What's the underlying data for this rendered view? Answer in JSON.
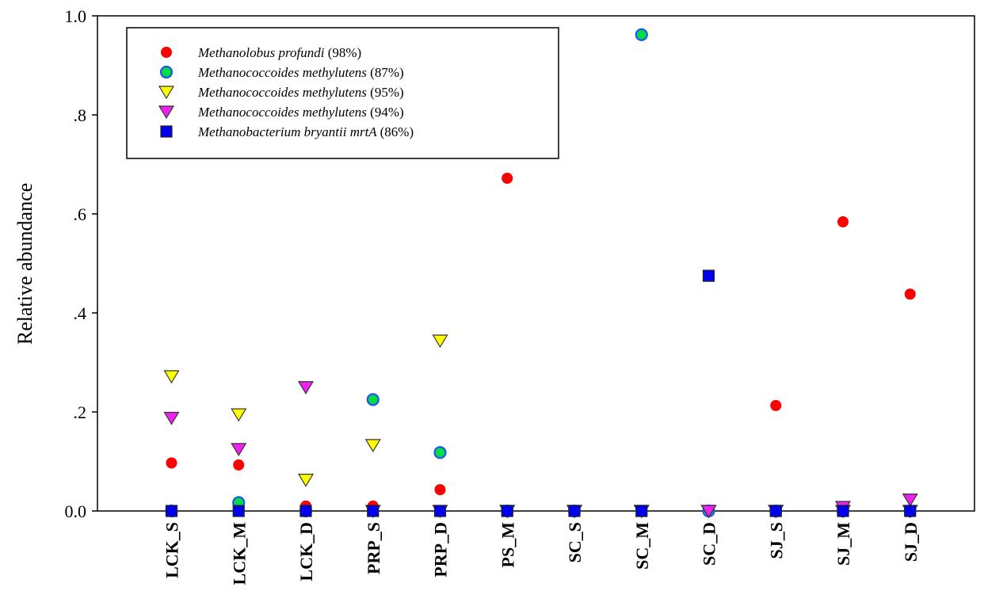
{
  "chart_data": {
    "type": "scatter",
    "ylabel": "Relative abundance",
    "xlabel": "",
    "ylim": [
      0,
      1.0
    ],
    "y_ticks": [
      "0.0",
      ".2",
      ".4",
      ".6",
      ".8",
      "1.0"
    ],
    "grid": false,
    "legend_position": "top-left",
    "categories": [
      "LCK_S",
      "LCK_M",
      "LCK_D",
      "PRP_S",
      "PRP_D",
      "PS_M",
      "SC_S",
      "SC_M",
      "SC_D",
      "SJ_S",
      "SJ_M",
      "SJ_D"
    ],
    "series": [
      {
        "name": "Methanolobus profundi",
        "suffix": "(98%)",
        "marker": "circle",
        "color": "#ff0000",
        "values": [
          0.097,
          0.093,
          0.01,
          0.01,
          0.043,
          0.672,
          0.0,
          0.0,
          0.0,
          0.213,
          0.584,
          0.438
        ]
      },
      {
        "name": "Methanococcoides methylutens",
        "suffix": "(87%)",
        "marker": "ring",
        "color": "#00dd44",
        "color2": "#2255ee",
        "values": [
          0.0,
          0.017,
          0.0,
          0.225,
          0.118,
          0.0,
          0.0,
          0.962,
          0.0,
          0.0,
          0.0,
          0.0
        ]
      },
      {
        "name": "Methanococcoides methylutens",
        "suffix": "(95%)",
        "marker": "triangle-down",
        "color": "#ffff00",
        "values": [
          0.272,
          0.195,
          0.063,
          0.133,
          0.344,
          0.0,
          0.0,
          0.0,
          0.0,
          0.0,
          0.0,
          0.0
        ]
      },
      {
        "name": "Methanococcoides methylutens",
        "suffix": "(94%)",
        "marker": "triangle-down",
        "color": "#ee22ee",
        "values": [
          0.188,
          0.125,
          0.25,
          0.0,
          0.0,
          0.0,
          0.0,
          0.0,
          0.0,
          0.0,
          0.008,
          0.023
        ]
      },
      {
        "name": "Methanobacterium bryantii mrtA",
        "suffix": "(86%)",
        "marker": "square",
        "color": "#0000ee",
        "values": [
          0.0,
          0.0,
          0.0,
          0.0,
          0.0,
          0.0,
          0.0,
          0.0,
          0.475,
          0.0,
          0.0,
          0.0
        ]
      }
    ]
  }
}
